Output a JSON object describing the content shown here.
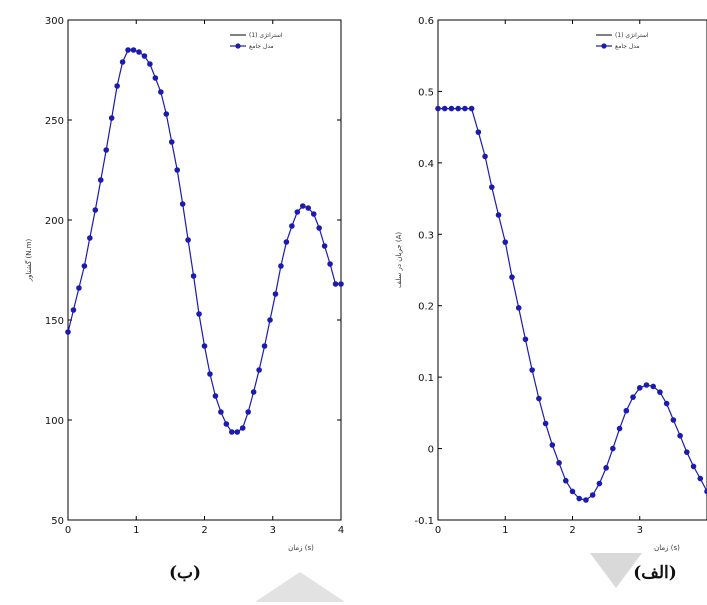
{
  "colors": {
    "series": "#1b1bb0",
    "axis": "#000000",
    "watermark": "#d4d4d4"
  },
  "chart_data": [
    {
      "id": "left",
      "type": "line",
      "caption": "(ب)",
      "xlabel": "زمان (s)",
      "ylabel": "گشتاور (N.m)",
      "xlim": [
        0,
        4
      ],
      "ylim": [
        50,
        300
      ],
      "xticks": [
        "0",
        "1",
        "2",
        "3",
        "4"
      ],
      "yticks": [
        "50",
        "100",
        "150",
        "200",
        "250",
        "300"
      ],
      "legend": {
        "position": "top-right",
        "entries": [
          "استراتژی (1)",
          "مدل جامع"
        ]
      },
      "series": [
        {
          "name": "مدل جامع",
          "x": [
            0.0,
            0.08,
            0.16,
            0.24,
            0.32,
            0.4,
            0.48,
            0.56,
            0.64,
            0.72,
            0.8,
            0.88,
            0.96,
            1.04,
            1.12,
            1.2,
            1.28,
            1.36,
            1.44,
            1.52,
            1.6,
            1.68,
            1.76,
            1.84,
            1.92,
            2.0,
            2.08,
            2.16,
            2.24,
            2.32,
            2.4,
            2.48,
            2.56,
            2.64,
            2.72,
            2.8,
            2.88,
            2.96,
            3.04,
            3.12,
            3.2,
            3.28,
            3.36,
            3.44,
            3.52,
            3.6,
            3.68,
            3.76,
            3.84,
            3.92,
            4.0
          ],
          "y": [
            144,
            155,
            166,
            177,
            191,
            205,
            220,
            235,
            251,
            267,
            279,
            285,
            285,
            284,
            282,
            278,
            271,
            264,
            253,
            239,
            225,
            208,
            190,
            172,
            153,
            137,
            123,
            112,
            104,
            98,
            94,
            94,
            96,
            104,
            114,
            125,
            137,
            150,
            163,
            177,
            189,
            197,
            204,
            207,
            206,
            203,
            196,
            187,
            178,
            168,
            168
          ]
        }
      ]
    },
    {
      "id": "right",
      "type": "line",
      "caption": "(الف)",
      "xlabel": "زمان (s)",
      "ylabel": "جریان در سلف (A)",
      "xlim": [
        0,
        4
      ],
      "ylim": [
        -0.1,
        0.6
      ],
      "xticks": [
        "0",
        "1",
        "2",
        "3",
        ""
      ],
      "yticks": [
        "-0.1",
        "0",
        "0.1",
        "0.2",
        "0.3",
        "0.4",
        "0.5",
        "0.6"
      ],
      "legend": {
        "position": "top-right",
        "entries": [
          "استراتژی (1)",
          "مدل جامع"
        ]
      },
      "series": [
        {
          "name": "مدل جامع",
          "x": [
            0.0,
            0.1,
            0.2,
            0.3,
            0.4,
            0.5,
            0.6,
            0.7,
            0.8,
            0.9,
            1.0,
            1.1,
            1.2,
            1.3,
            1.4,
            1.5,
            1.6,
            1.7,
            1.8,
            1.9,
            2.0,
            2.1,
            2.2,
            2.3,
            2.4,
            2.5,
            2.6,
            2.7,
            2.8,
            2.9,
            3.0,
            3.1,
            3.2,
            3.3,
            3.4,
            3.5,
            3.6,
            3.7,
            3.8,
            3.9,
            4.0
          ],
          "y": [
            0.476,
            0.476,
            0.476,
            0.476,
            0.476,
            0.476,
            0.443,
            0.409,
            0.366,
            0.327,
            0.289,
            0.24,
            0.197,
            0.153,
            0.11,
            0.07,
            0.035,
            0.005,
            -0.02,
            -0.045,
            -0.06,
            -0.07,
            -0.072,
            -0.065,
            -0.049,
            -0.027,
            0.0,
            0.028,
            0.053,
            0.072,
            0.085,
            0.089,
            0.087,
            0.079,
            0.063,
            0.04,
            0.018,
            -0.005,
            -0.025,
            -0.042,
            -0.06
          ]
        }
      ]
    }
  ]
}
